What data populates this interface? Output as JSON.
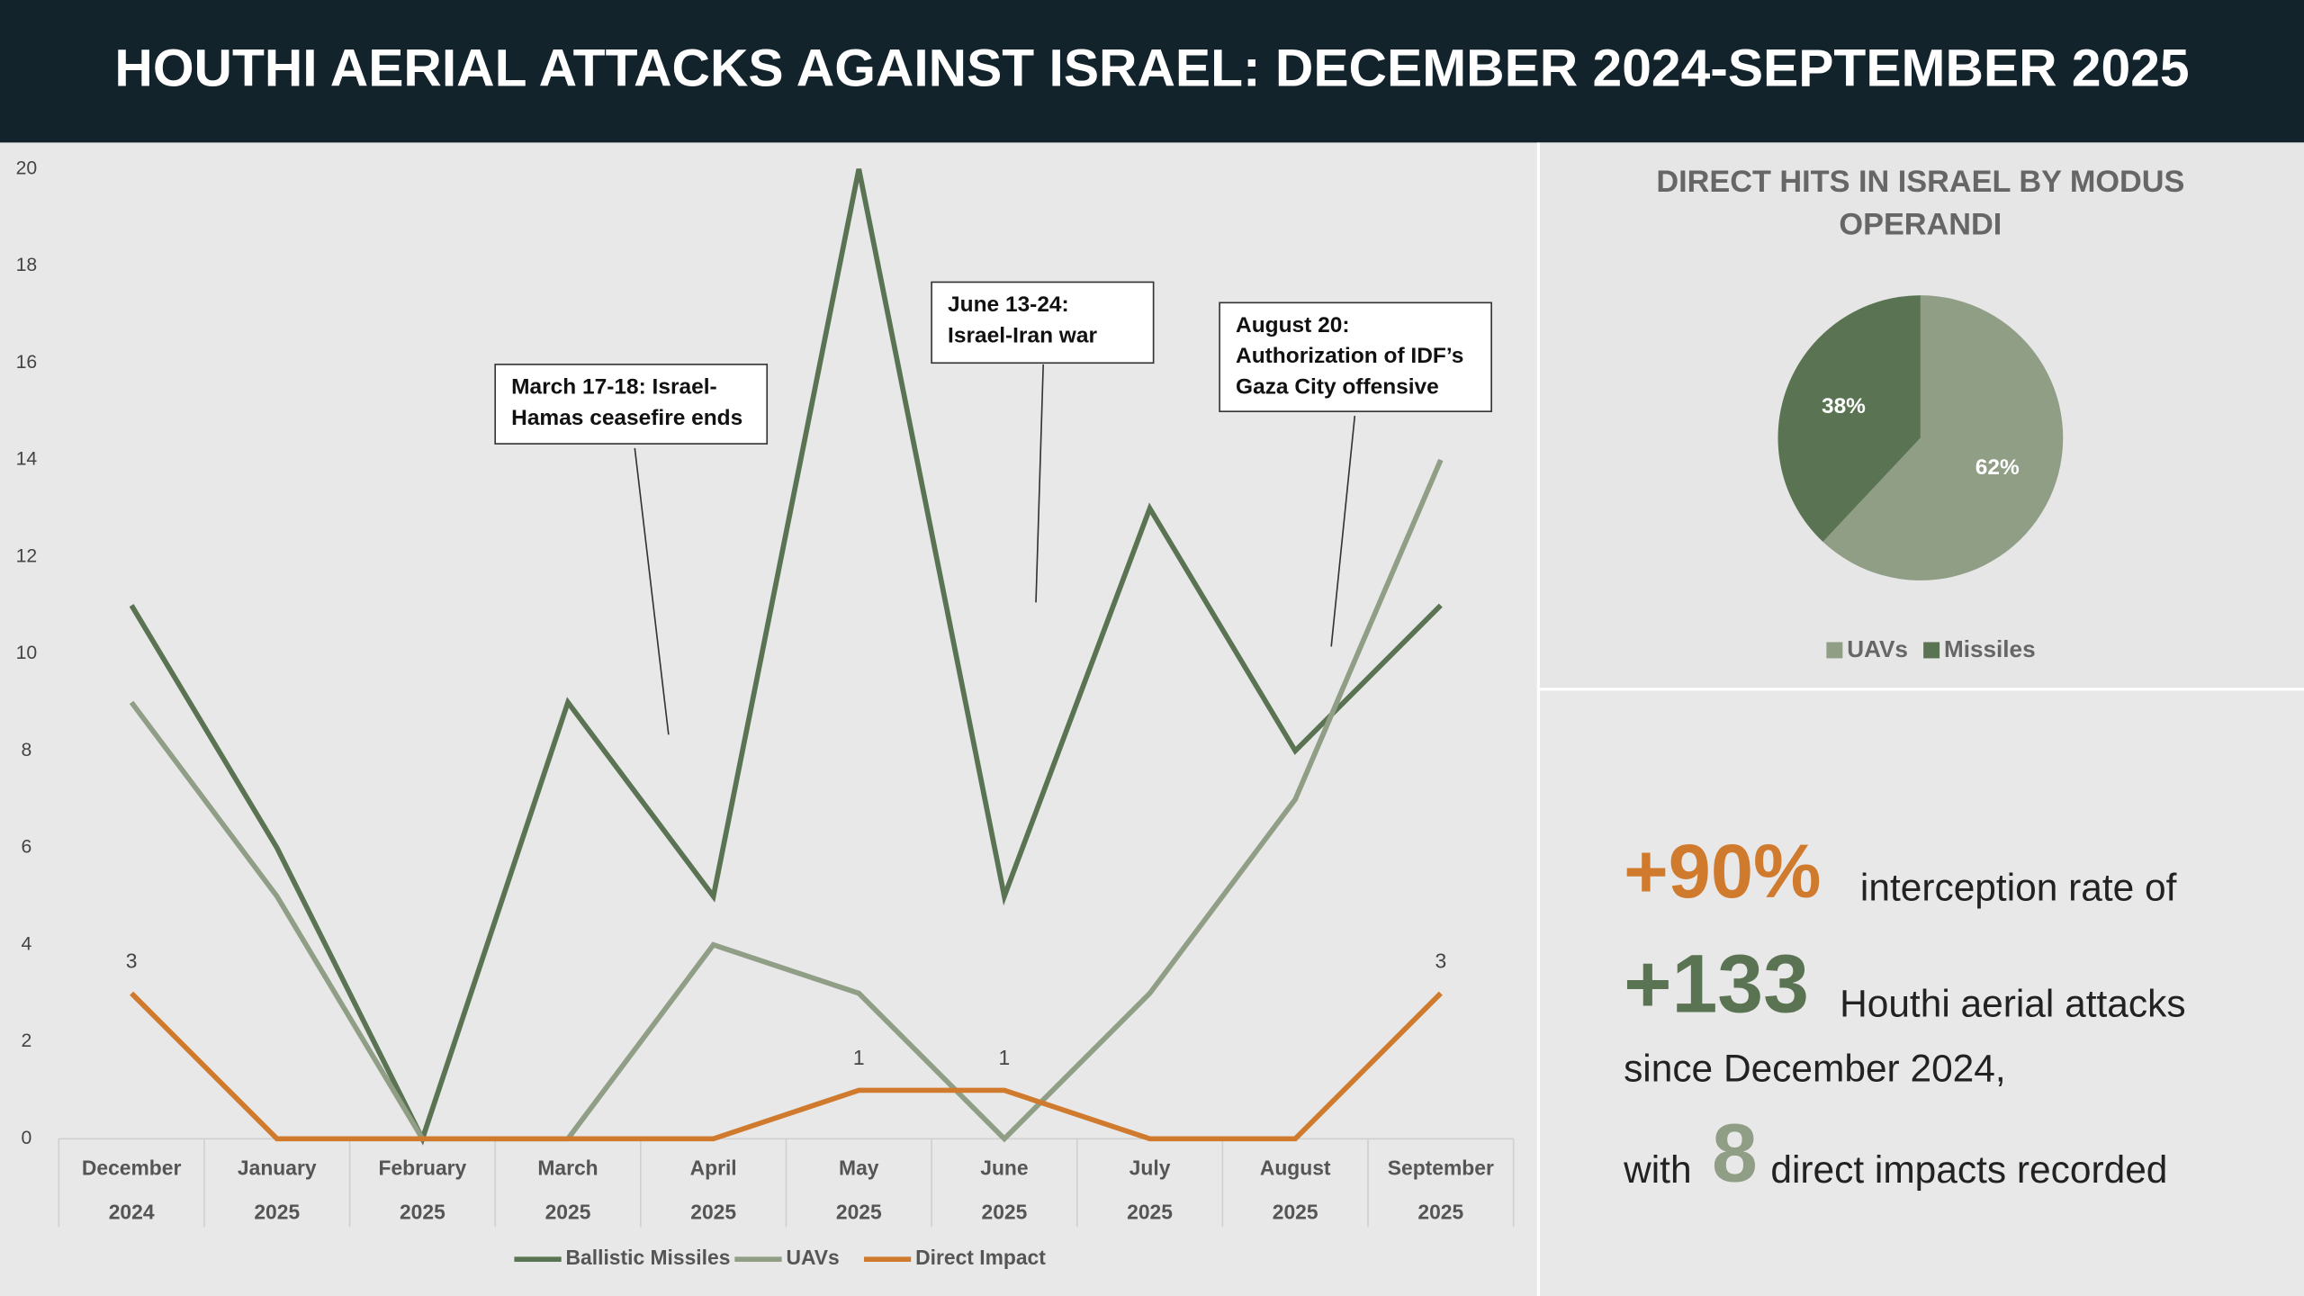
{
  "header": {
    "title": "HOUTHI AERIAL ATTACKS AGAINST ISRAEL: DECEMBER 2024-SEPTEMBER 2025"
  },
  "chart_data": [
    {
      "type": "line",
      "categories": [
        [
          "December",
          "2024"
        ],
        [
          "January",
          "2025"
        ],
        [
          "February",
          "2025"
        ],
        [
          "March",
          "2025"
        ],
        [
          "April",
          "2025"
        ],
        [
          "May",
          "2025"
        ],
        [
          "June",
          "2025"
        ],
        [
          "July",
          "2025"
        ],
        [
          "August",
          "2025"
        ],
        [
          "September",
          "2025"
        ]
      ],
      "series": [
        {
          "name": "Ballistic Missiles",
          "color": "#5a7352",
          "values": [
            11,
            6,
            0,
            9,
            5,
            20,
            5,
            13,
            8,
            11
          ]
        },
        {
          "name": "UAVs",
          "color": "#8f9e85",
          "values": [
            9,
            5,
            0,
            0,
            4,
            3,
            0,
            3,
            7,
            14
          ]
        },
        {
          "name": "Direct Impact",
          "color": "#d07a2e",
          "values": [
            3,
            0,
            0,
            0,
            0,
            1,
            1,
            0,
            0,
            3
          ],
          "value_labels": [
            "3",
            null,
            null,
            null,
            null,
            "1",
            "1",
            null,
            null,
            "3"
          ]
        }
      ],
      "ylim": [
        0,
        20
      ],
      "yticks": [
        0,
        2,
        4,
        6,
        8,
        10,
        12,
        14,
        16,
        18,
        20
      ],
      "grid": false,
      "annotations": [
        {
          "lines": [
            "March 17-18: Israel-",
            "Hamas ceasefire ends"
          ]
        },
        {
          "lines": [
            "June 13-24:",
            "Israel-Iran war"
          ]
        },
        {
          "lines": [
            "August 20:",
            "Authorization of IDF’s",
            "Gaza City offensive"
          ]
        }
      ]
    },
    {
      "type": "pie",
      "title": [
        "DIRECT HITS IN ISRAEL BY MODUS",
        "OPERANDI"
      ],
      "categories": [
        "UAVs",
        "Missiles"
      ],
      "values": [
        62,
        38
      ],
      "value_labels": [
        "62%",
        "38%"
      ],
      "colors": [
        "#8f9e85",
        "#5a7352"
      ]
    }
  ],
  "stats": {
    "rate": "+90%",
    "rate_text": "interception rate of",
    "attacks": "+133",
    "attacks_text": "Houthi aerial attacks",
    "since": "since December 2024,",
    "with": "with",
    "impacts": "8",
    "impacts_text": "direct impacts recorded"
  }
}
